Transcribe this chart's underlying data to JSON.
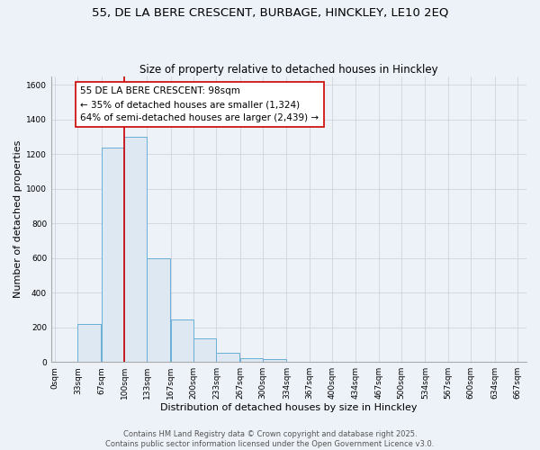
{
  "title": "55, DE LA BERE CRESCENT, BURBAGE, HINCKLEY, LE10 2EQ",
  "subtitle": "Size of property relative to detached houses in Hinckley",
  "xlabel": "Distribution of detached houses by size in Hinckley",
  "ylabel": "Number of detached properties",
  "bar_color": "#dde8f3",
  "bar_edge_color": "#6aafd6",
  "background_color": "#edf2f9",
  "grid_color": "#c8cdd8",
  "vline_x": 100,
  "vline_color": "#cc0000",
  "annotation_line1": "55 DE LA BERE CRESCENT: 98sqm",
  "annotation_line2": "← 35% of detached houses are smaller (1,324)",
  "annotation_line3": "64% of semi-detached houses are larger (2,439) →",
  "annotation_box_color": "#ffffff",
  "annotation_border_color": "#cc0000",
  "bin_left_edges": [
    0,
    33,
    67,
    100,
    133,
    167,
    200,
    233,
    267,
    300,
    334,
    367
  ],
  "bin_values": [
    0,
    220,
    1240,
    1300,
    600,
    245,
    135,
    55,
    20,
    15,
    0,
    0
  ],
  "bin_width": 33,
  "ylim": [
    0,
    1650
  ],
  "xlim": [
    -5,
    680
  ],
  "yticks": [
    0,
    200,
    400,
    600,
    800,
    1000,
    1200,
    1400,
    1600
  ],
  "xtick_labels": [
    "0sqm",
    "33sqm",
    "67sqm",
    "100sqm",
    "133sqm",
    "167sqm",
    "200sqm",
    "233sqm",
    "267sqm",
    "300sqm",
    "334sqm",
    "367sqm",
    "400sqm",
    "434sqm",
    "467sqm",
    "500sqm",
    "534sqm",
    "567sqm",
    "600sqm",
    "634sqm",
    "667sqm"
  ],
  "xtick_positions": [
    0,
    33,
    67,
    100,
    133,
    167,
    200,
    233,
    267,
    300,
    334,
    367,
    400,
    434,
    467,
    500,
    534,
    567,
    600,
    634,
    667
  ],
  "footer_text": "Contains HM Land Registry data © Crown copyright and database right 2025.\nContains public sector information licensed under the Open Government Licence v3.0.",
  "title_fontsize": 9.5,
  "subtitle_fontsize": 8.5,
  "axis_label_fontsize": 8,
  "tick_fontsize": 6.5,
  "annotation_fontsize": 7.5,
  "footer_fontsize": 6,
  "ylabel_fontsize": 8
}
